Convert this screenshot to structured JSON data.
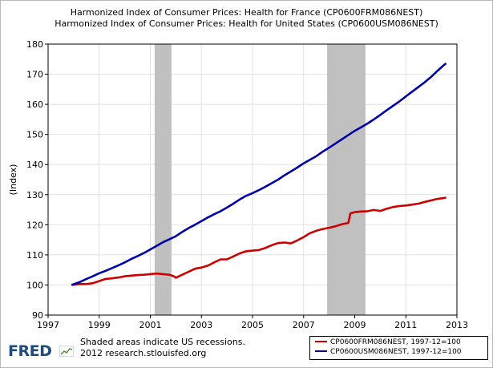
{
  "title_lines": [
    "Harmonized Index of Consumer Prices: Health for France (CP0600FRM086NEST)",
    "Harmonized Index of Consumer Prices: Health for United States (CP0600USM086NEST)"
  ],
  "footer": {
    "note_line1": "Shaded areas indicate US recessions.",
    "note_line2": "2012 research.stlouisfed.org",
    "logo_text": "FRED"
  },
  "colors": {
    "france": "#cc0000",
    "us": "#0000aa",
    "recession": "#c0c0c0",
    "grid": "#e2e2e2"
  },
  "chart_data": {
    "type": "line",
    "ylabel": "(Index)",
    "xlim": [
      1997,
      2013
    ],
    "ylim": [
      90,
      180
    ],
    "x_ticks": [
      1997,
      1999,
      2001,
      2003,
      2005,
      2007,
      2009,
      2011,
      2013
    ],
    "y_ticks": [
      90,
      100,
      110,
      120,
      130,
      140,
      150,
      160,
      170,
      180
    ],
    "grid": true,
    "legend_position": "bottom-right",
    "recessions": [
      [
        2001.17,
        2001.83
      ],
      [
        2007.92,
        2009.42
      ]
    ],
    "series": [
      {
        "name": "CP0600FRM086NEST, 1997-12=100",
        "color_key": "france",
        "points": [
          [
            1997.92,
            100.0
          ],
          [
            1998.25,
            100.3
          ],
          [
            1998.5,
            100.3
          ],
          [
            1998.75,
            100.6
          ],
          [
            1999.0,
            101.3
          ],
          [
            1999.25,
            102.0
          ],
          [
            1999.5,
            102.2
          ],
          [
            1999.75,
            102.5
          ],
          [
            2000.0,
            102.9
          ],
          [
            2000.25,
            103.1
          ],
          [
            2000.5,
            103.3
          ],
          [
            2000.75,
            103.4
          ],
          [
            2001.0,
            103.6
          ],
          [
            2001.25,
            103.8
          ],
          [
            2001.5,
            103.6
          ],
          [
            2001.75,
            103.4
          ],
          [
            2001.92,
            102.9
          ],
          [
            2002.0,
            102.4
          ],
          [
            2002.25,
            103.4
          ],
          [
            2002.5,
            104.4
          ],
          [
            2002.75,
            105.4
          ],
          [
            2003.0,
            105.8
          ],
          [
            2003.25,
            106.4
          ],
          [
            2003.5,
            107.5
          ],
          [
            2003.75,
            108.5
          ],
          [
            2004.0,
            108.5
          ],
          [
            2004.25,
            109.5
          ],
          [
            2004.5,
            110.5
          ],
          [
            2004.75,
            111.2
          ],
          [
            2005.0,
            111.4
          ],
          [
            2005.25,
            111.6
          ],
          [
            2005.5,
            112.3
          ],
          [
            2005.75,
            113.2
          ],
          [
            2006.0,
            113.9
          ],
          [
            2006.25,
            114.1
          ],
          [
            2006.5,
            113.8
          ],
          [
            2006.75,
            114.8
          ],
          [
            2007.0,
            115.9
          ],
          [
            2007.25,
            117.2
          ],
          [
            2007.5,
            118.0
          ],
          [
            2007.75,
            118.6
          ],
          [
            2008.0,
            119.0
          ],
          [
            2008.25,
            119.5
          ],
          [
            2008.5,
            120.2
          ],
          [
            2008.75,
            120.6
          ],
          [
            2008.83,
            123.8
          ],
          [
            2009.0,
            124.2
          ],
          [
            2009.25,
            124.4
          ],
          [
            2009.5,
            124.5
          ],
          [
            2009.75,
            124.9
          ],
          [
            2010.0,
            124.6
          ],
          [
            2010.25,
            125.3
          ],
          [
            2010.5,
            125.9
          ],
          [
            2010.75,
            126.2
          ],
          [
            2011.0,
            126.4
          ],
          [
            2011.25,
            126.7
          ],
          [
            2011.5,
            127.0
          ],
          [
            2011.75,
            127.6
          ],
          [
            2012.0,
            128.1
          ],
          [
            2012.25,
            128.6
          ],
          [
            2012.5,
            128.9
          ],
          [
            2012.58,
            129.0
          ]
        ]
      },
      {
        "name": "CP0600USM086NEST, 1997-12=100",
        "color_key": "us",
        "points": [
          [
            1997.92,
            100.0
          ],
          [
            1998.25,
            101.0
          ],
          [
            1998.5,
            102.0
          ],
          [
            1998.75,
            102.9
          ],
          [
            1999.0,
            103.9
          ],
          [
            1999.25,
            104.7
          ],
          [
            1999.5,
            105.6
          ],
          [
            1999.75,
            106.5
          ],
          [
            2000.0,
            107.5
          ],
          [
            2000.25,
            108.6
          ],
          [
            2000.5,
            109.6
          ],
          [
            2000.75,
            110.6
          ],
          [
            2001.0,
            111.8
          ],
          [
            2001.25,
            113.0
          ],
          [
            2001.5,
            114.2
          ],
          [
            2001.75,
            115.2
          ],
          [
            2002.0,
            116.2
          ],
          [
            2002.25,
            117.6
          ],
          [
            2002.5,
            118.9
          ],
          [
            2002.75,
            120.0
          ],
          [
            2003.0,
            121.2
          ],
          [
            2003.25,
            122.4
          ],
          [
            2003.5,
            123.5
          ],
          [
            2003.75,
            124.5
          ],
          [
            2004.0,
            125.7
          ],
          [
            2004.25,
            127.0
          ],
          [
            2004.5,
            128.4
          ],
          [
            2004.75,
            129.6
          ],
          [
            2005.0,
            130.5
          ],
          [
            2005.25,
            131.5
          ],
          [
            2005.5,
            132.6
          ],
          [
            2005.75,
            133.8
          ],
          [
            2006.0,
            135.0
          ],
          [
            2006.25,
            136.4
          ],
          [
            2006.5,
            137.7
          ],
          [
            2006.75,
            139.0
          ],
          [
            2007.0,
            140.4
          ],
          [
            2007.25,
            141.6
          ],
          [
            2007.5,
            142.8
          ],
          [
            2007.75,
            144.3
          ],
          [
            2008.0,
            145.6
          ],
          [
            2008.25,
            147.0
          ],
          [
            2008.5,
            148.4
          ],
          [
            2008.75,
            149.8
          ],
          [
            2009.0,
            151.2
          ],
          [
            2009.25,
            152.4
          ],
          [
            2009.5,
            153.6
          ],
          [
            2009.75,
            155.0
          ],
          [
            2010.0,
            156.5
          ],
          [
            2010.25,
            158.0
          ],
          [
            2010.5,
            159.5
          ],
          [
            2010.75,
            161.0
          ],
          [
            2011.0,
            162.6
          ],
          [
            2011.25,
            164.2
          ],
          [
            2011.5,
            165.8
          ],
          [
            2011.75,
            167.4
          ],
          [
            2012.0,
            169.2
          ],
          [
            2012.25,
            171.2
          ],
          [
            2012.5,
            173.1
          ],
          [
            2012.58,
            173.6
          ]
        ]
      }
    ]
  }
}
